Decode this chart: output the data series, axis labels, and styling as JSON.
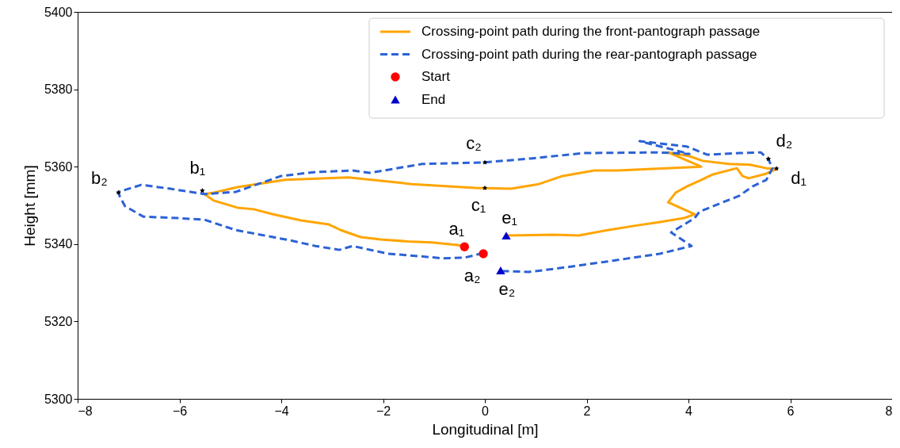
{
  "chart_data": {
    "type": "line",
    "xlabel": "Longitudinal [m]",
    "ylabel": "Height [mm]",
    "xlim": [
      -8,
      8
    ],
    "xticks": [
      -8,
      -6,
      -4,
      -2,
      0,
      2,
      4,
      6,
      8
    ],
    "ylim": [
      5300,
      5400
    ],
    "yticks": [
      5300,
      5320,
      5340,
      5360,
      5380,
      5400
    ],
    "grid": false,
    "legend": "top right",
    "series": [
      {
        "name": "Crossing-point path during the front-pantograph passage",
        "color": "#ffa500",
        "line_style": "solid",
        "x": [
          -0.35,
          -0.58,
          -1.04,
          -1.43,
          -2.05,
          -2.44,
          -2.83,
          -3.07,
          -3.61,
          -4.16,
          -4.54,
          -4.86,
          -5.32,
          -5.51,
          -5.32,
          -4.86,
          -3.92,
          -2.68,
          -1.43,
          -0.19,
          0.51,
          1.06,
          1.53,
          2.15,
          2.61,
          3.55,
          4.25,
          3.6,
          4.02,
          4.28,
          4.79,
          5.21,
          5.53,
          5.73,
          5.53,
          5.18,
          5.06,
          4.95,
          4.48,
          4.22,
          3.97,
          3.75,
          3.6,
          4.12,
          3.91,
          3.44,
          2.93,
          2.41,
          1.84,
          1.37,
          0.44
        ],
        "values": [
          5339.4,
          5339.8,
          5340.4,
          5340.6,
          5341.2,
          5341.8,
          5343.6,
          5345.1,
          5346.1,
          5347.7,
          5349.0,
          5349.4,
          5351.2,
          5352.9,
          5353.3,
          5354.7,
          5356.6,
          5357.2,
          5355.5,
          5354.5,
          5354.3,
          5355.5,
          5357.6,
          5359.0,
          5359.0,
          5359.6,
          5360.0,
          5363.7,
          5362.7,
          5361.5,
          5360.7,
          5360.5,
          5359.6,
          5359.4,
          5358.2,
          5357.0,
          5357.6,
          5359.6,
          5358.0,
          5356.4,
          5354.9,
          5353.3,
          5350.8,
          5347.7,
          5346.7,
          5345.7,
          5344.7,
          5343.6,
          5342.2,
          5342.4,
          5342.2
        ]
      },
      {
        "name": "Crossing-point path during the rear-pantograph passage",
        "color": "#2b62d6",
        "line_style": "dashed",
        "x": [
          -0.03,
          -0.39,
          -0.81,
          -1.32,
          -1.9,
          -2.6,
          -2.86,
          -3.33,
          -3.84,
          -4.89,
          -5.51,
          -6.02,
          -6.71,
          -7.07,
          -7.18,
          -7.19,
          -6.75,
          -6.18,
          -5.51,
          -4.89,
          -4.37,
          -4.0,
          -3.33,
          -2.6,
          -2.26,
          -1.23,
          -0.02,
          0.89,
          1.94,
          3.39,
          4.02,
          3.04,
          3.97,
          4.37,
          5.0,
          5.42,
          5.57,
          5.65,
          5.53,
          5.26,
          5.0,
          4.22,
          4.12,
          3.66,
          4.06,
          3.44,
          2.41,
          1.37,
          0.86,
          0.44,
          0.31
        ],
        "values": [
          5337.7,
          5336.5,
          5336.3,
          5336.9,
          5337.5,
          5339.5,
          5338.5,
          5339.5,
          5341.0,
          5343.6,
          5346.3,
          5346.7,
          5347.1,
          5349.8,
          5352.5,
          5353.5,
          5355.3,
          5354.3,
          5352.9,
          5353.5,
          5355.9,
          5357.6,
          5358.6,
          5359.0,
          5358.4,
          5360.7,
          5361.1,
          5362.1,
          5363.5,
          5363.7,
          5363.3,
          5366.6,
          5365.2,
          5363.1,
          5363.5,
          5363.7,
          5361.9,
          5359.6,
          5356.6,
          5354.9,
          5352.5,
          5348.4,
          5346.7,
          5343.0,
          5339.5,
          5337.5,
          5335.5,
          5333.6,
          5332.8,
          5333.0,
          5333.0
        ]
      },
      {
        "type": "scatter",
        "color": "#000000",
        "marker": "star",
        "x": [
          -7.2,
          -5.55,
          0.0,
          0.0,
          5.57,
          5.73
        ],
        "values": [
          5353.3,
          5353.8,
          5361.1,
          5354.5,
          5362.0,
          5359.5
        ]
      },
      {
        "type": "scatter",
        "name": "Start",
        "color": "#ff0000",
        "marker": "circle",
        "x": [
          -0.4,
          -0.03
        ],
        "values": [
          5339.3,
          5337.5
        ]
      },
      {
        "type": "scatter",
        "name": "End",
        "color": "#0000cc",
        "marker": "triangle",
        "x": [
          0.42,
          0.31
        ],
        "values": [
          5342.2,
          5333.2
        ]
      }
    ],
    "annotations": [
      {
        "text": "a₁",
        "x": -0.4,
        "y": 5339.3
      },
      {
        "text": "a₂",
        "x": -0.03,
        "y": 5337.5
      },
      {
        "text": "b₂",
        "x": -7.2,
        "y": 5353.3
      },
      {
        "text": "b₁",
        "x": -5.55,
        "y": 5353.8
      },
      {
        "text": "c₂",
        "x": 0.0,
        "y": 5361.1
      },
      {
        "text": "c₁",
        "x": 0.0,
        "y": 5354.5
      },
      {
        "text": "d₂",
        "x": 5.57,
        "y": 5362.0
      },
      {
        "text": "d₁",
        "x": 5.73,
        "y": 5359.5
      },
      {
        "text": "e₁",
        "x": 0.42,
        "y": 5342.2
      },
      {
        "text": "e₂",
        "x": 0.31,
        "y": 5333.2
      }
    ]
  }
}
